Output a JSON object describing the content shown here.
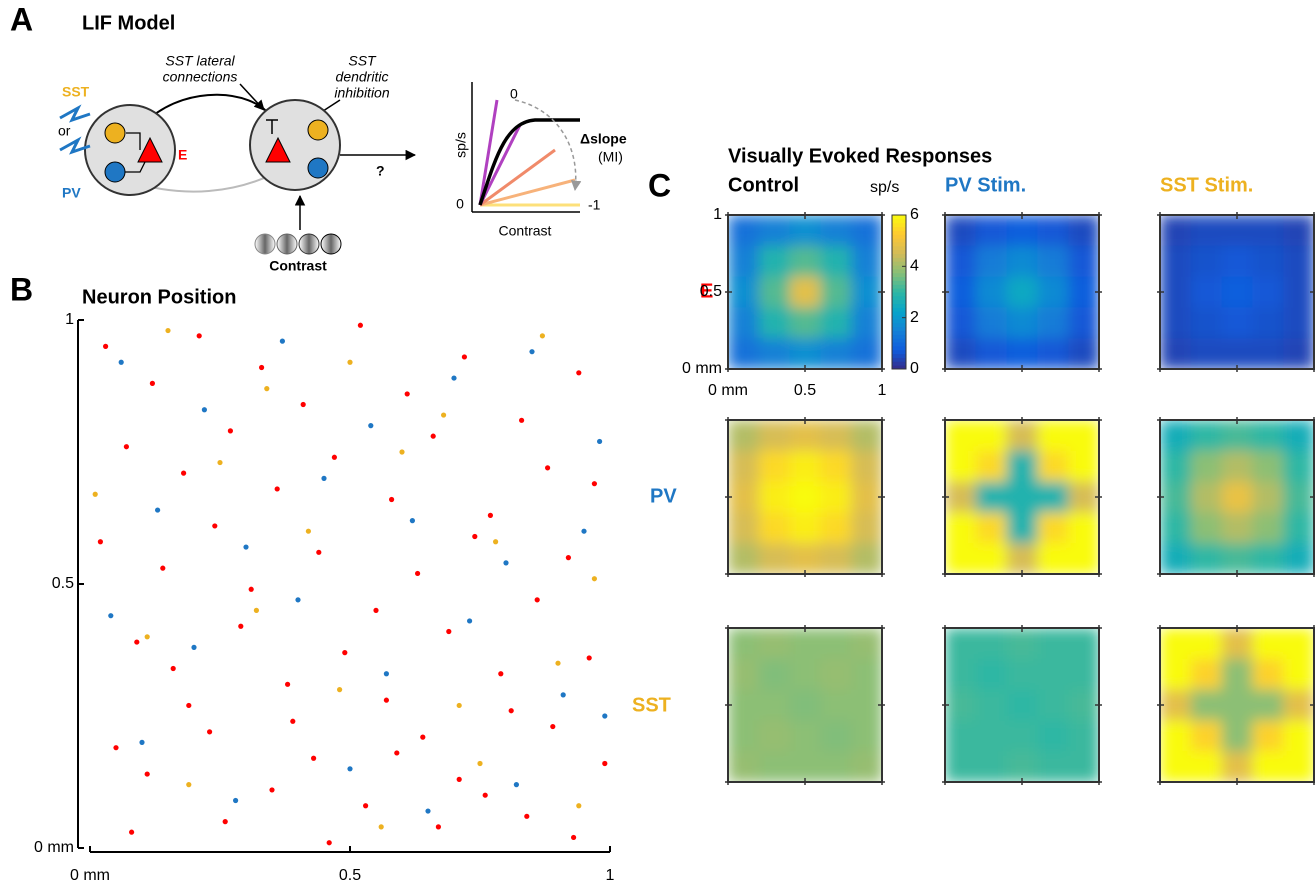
{
  "panel_a": {
    "letter": "A",
    "title": "LIF Model",
    "sst": "SST",
    "or": "or",
    "pv": "PV",
    "e": "E",
    "lateral": [
      "SST lateral",
      "connections"
    ],
    "dendritic": [
      "SST",
      "dendritic",
      "inhibition"
    ],
    "question": "?",
    "contrast": "Contrast",
    "inset": {
      "ylabel": "sp/s",
      "y0": "0",
      "xlabel": "Contrast",
      "mi_top": "0",
      "mi_bottom": "-1",
      "delta": "Δslope",
      "mi": "(MI)"
    }
  },
  "chart_data": [
    {
      "type": "scatter",
      "panel_label": "B",
      "title": "Neuron Position",
      "xlim": [
        0,
        1
      ],
      "ylim": [
        0,
        1
      ],
      "xticks": [
        {
          "value": 0,
          "label": "0 mm"
        },
        0.5,
        1
      ],
      "yticks": [
        {
          "value": 0,
          "label": "0 mm"
        },
        0.5,
        1
      ],
      "series": [
        {
          "name": "E",
          "color": "#ff0000",
          "x": [
            0.03,
            0.12,
            0.21,
            0.33,
            0.41,
            0.52,
            0.61,
            0.72,
            0.83,
            0.94,
            0.07,
            0.18,
            0.27,
            0.36,
            0.47,
            0.58,
            0.66,
            0.77,
            0.88,
            0.97,
            0.02,
            0.14,
            0.24,
            0.31,
            0.44,
            0.55,
            0.63,
            0.74,
            0.86,
            0.92,
            0.09,
            0.16,
            0.29,
            0.38,
            0.49,
            0.57,
            0.69,
            0.79,
            0.81,
            0.96,
            0.05,
            0.11,
            0.23,
            0.35,
            0.43,
            0.53,
            0.64,
            0.71,
            0.84,
            0.99,
            0.08,
            0.19,
            0.26,
            0.39,
            0.46,
            0.59,
            0.67,
            0.76,
            0.89,
            0.93
          ],
          "y": [
            0.95,
            0.88,
            0.97,
            0.91,
            0.84,
            0.99,
            0.86,
            0.93,
            0.81,
            0.9,
            0.76,
            0.71,
            0.79,
            0.68,
            0.74,
            0.66,
            0.78,
            0.63,
            0.72,
            0.69,
            0.58,
            0.53,
            0.61,
            0.49,
            0.56,
            0.45,
            0.52,
            0.59,
            0.47,
            0.55,
            0.39,
            0.34,
            0.42,
            0.31,
            0.37,
            0.28,
            0.41,
            0.33,
            0.26,
            0.36,
            0.19,
            0.14,
            0.22,
            0.11,
            0.17,
            0.08,
            0.21,
            0.13,
            0.06,
            0.16,
            0.03,
            0.27,
            0.05,
            0.24,
            0.01,
            0.18,
            0.04,
            0.1,
            0.23,
            0.02
          ]
        },
        {
          "name": "PV",
          "color": "#1f77c4",
          "x": [
            0.06,
            0.22,
            0.37,
            0.54,
            0.7,
            0.85,
            0.98,
            0.13,
            0.3,
            0.45,
            0.62,
            0.8,
            0.95,
            0.04,
            0.2,
            0.4,
            0.57,
            0.73,
            0.91,
            0.1,
            0.28,
            0.5,
            0.65,
            0.82,
            0.99
          ],
          "y": [
            0.92,
            0.83,
            0.96,
            0.8,
            0.89,
            0.94,
            0.77,
            0.64,
            0.57,
            0.7,
            0.62,
            0.54,
            0.6,
            0.44,
            0.38,
            0.47,
            0.33,
            0.43,
            0.29,
            0.2,
            0.09,
            0.15,
            0.07,
            0.12,
            0.25
          ]
        },
        {
          "name": "SST",
          "color": "#edb120",
          "x": [
            0.15,
            0.34,
            0.5,
            0.68,
            0.87,
            0.01,
            0.25,
            0.42,
            0.6,
            0.78,
            0.97,
            0.11,
            0.32,
            0.48,
            0.71,
            0.9,
            0.19,
            0.56,
            0.75,
            0.94
          ],
          "y": [
            0.98,
            0.87,
            0.92,
            0.82,
            0.97,
            0.67,
            0.73,
            0.6,
            0.75,
            0.58,
            0.51,
            0.4,
            0.45,
            0.3,
            0.27,
            0.35,
            0.12,
            0.04,
            0.16,
            0.08
          ]
        }
      ]
    },
    {
      "type": "heatmap",
      "panel_label": "C",
      "title": "Visually Evoked Responses",
      "columns": [
        {
          "name": "Control",
          "color": "#000000"
        },
        {
          "name": "PV Stim.",
          "color": "#1f77c4"
        },
        {
          "name": "SST Stim.",
          "color": "#edb120"
        }
      ],
      "rows": [
        {
          "name": "E",
          "color": "#ff0000"
        },
        {
          "name": "PV",
          "color": "#1f77c4"
        },
        {
          "name": "SST",
          "color": "#edb120"
        }
      ],
      "colorbar_label": "sp/s",
      "clim": [
        0,
        6
      ],
      "cticks": [
        0,
        2,
        4,
        6
      ],
      "xlim": [
        0,
        1
      ],
      "ylim": [
        0,
        1
      ],
      "xticks": [
        {
          "value": 0,
          "label": "0 mm"
        },
        0.5,
        1
      ],
      "yticks": [
        {
          "value": 0,
          "label": "0 mm"
        },
        0.5,
        1
      ],
      "values": [
        [
          [
            [
              1.2,
              1.5,
              1.8,
              1.5,
              1.2
            ],
            [
              1.5,
              2.8,
              3.3,
              2.8,
              1.5
            ],
            [
              1.8,
              3.3,
              4.8,
              3.3,
              1.8
            ],
            [
              1.5,
              2.8,
              3.3,
              2.8,
              1.5
            ],
            [
              1.2,
              1.5,
              1.8,
              1.5,
              1.2
            ]
          ],
          [
            [
              0.5,
              0.7,
              0.8,
              0.7,
              0.5
            ],
            [
              0.7,
              1.4,
              1.7,
              1.4,
              0.7
            ],
            [
              0.8,
              1.7,
              2.4,
              1.7,
              0.8
            ],
            [
              0.7,
              1.4,
              1.7,
              1.4,
              0.7
            ],
            [
              0.5,
              0.7,
              0.8,
              0.7,
              0.5
            ]
          ],
          [
            [
              0.4,
              0.5,
              0.5,
              0.5,
              0.4
            ],
            [
              0.5,
              0.6,
              0.7,
              0.6,
              0.5
            ],
            [
              0.5,
              0.7,
              0.8,
              0.7,
              0.5
            ],
            [
              0.5,
              0.6,
              0.7,
              0.6,
              0.5
            ],
            [
              0.4,
              0.5,
              0.5,
              0.5,
              0.4
            ]
          ]
        ],
        [
          [
            [
              4.2,
              4.6,
              4.8,
              4.6,
              4.2
            ],
            [
              4.6,
              5.5,
              5.8,
              5.5,
              4.6
            ],
            [
              4.8,
              5.8,
              6,
              5.8,
              4.8
            ],
            [
              4.6,
              5.5,
              5.8,
              5.5,
              4.6
            ],
            [
              4.2,
              4.6,
              4.8,
              4.6,
              4.2
            ]
          ],
          [
            [
              6,
              6,
              4.6,
              6,
              6
            ],
            [
              6,
              5.5,
              2.8,
              5.5,
              6
            ],
            [
              4.6,
              2.8,
              2.8,
              2.8,
              4.6
            ],
            [
              6,
              5.5,
              2.8,
              5.5,
              6
            ],
            [
              6,
              6,
              4.6,
              6,
              6
            ]
          ],
          [
            [
              2.6,
              3,
              3.2,
              3,
              2.6
            ],
            [
              3,
              3.8,
              4.2,
              3.8,
              3
            ],
            [
              3.2,
              4.2,
              4.9,
              4.2,
              3.2
            ],
            [
              3,
              3.8,
              4.2,
              3.8,
              3
            ],
            [
              2.6,
              3,
              3.2,
              3,
              2.6
            ]
          ]
        ],
        [
          [
            [
              3.8,
              3.9,
              3.8,
              3.8,
              3.9
            ],
            [
              3.9,
              3.7,
              3.8,
              3.9,
              3.8
            ],
            [
              3.8,
              3.8,
              3.7,
              3.8,
              3.8
            ],
            [
              3.8,
              3.9,
              3.8,
              3.7,
              3.8
            ],
            [
              3.9,
              3.8,
              3.8,
              3.8,
              3.9
            ]
          ],
          [
            [
              3.1,
              3.1,
              3.2,
              3.1,
              3.1
            ],
            [
              3.1,
              3,
              3.1,
              3.1,
              3.1
            ],
            [
              3.2,
              3.1,
              3,
              3.1,
              3.2
            ],
            [
              3.1,
              3.1,
              3.1,
              3,
              3.1
            ],
            [
              3.1,
              3.1,
              3.2,
              3.1,
              3.1
            ]
          ],
          [
            [
              6,
              6,
              4.8,
              6,
              6
            ],
            [
              6,
              5.4,
              3.8,
              5.4,
              6
            ],
            [
              4.8,
              3.8,
              3.8,
              3.8,
              4.8
            ],
            [
              6,
              5.4,
              3.8,
              5.4,
              6
            ],
            [
              6,
              6,
              4.8,
              6,
              6
            ]
          ]
        ]
      ]
    }
  ]
}
